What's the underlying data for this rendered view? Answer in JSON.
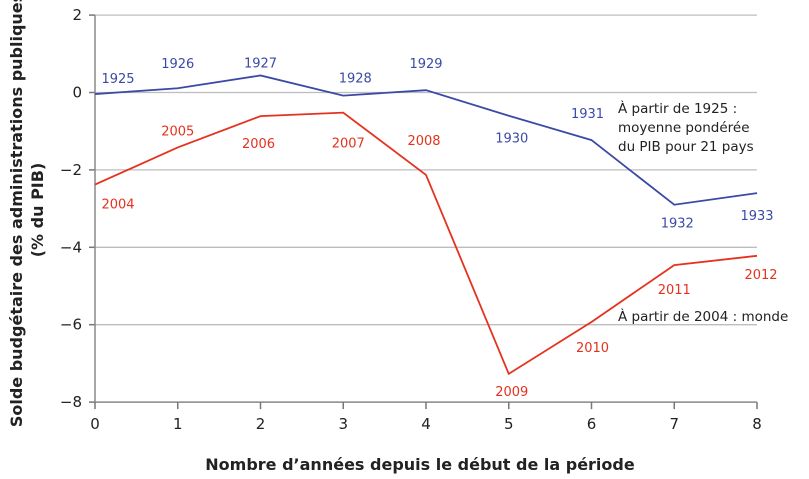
{
  "chart_data": {
    "type": "line",
    "xlabel": "Nombre d’années depuis le début de la période",
    "ylabel": [
      "Solde budgétaire des administrations publiques",
      "(% du PIB)"
    ],
    "xlim": [
      0,
      8
    ],
    "ylim": [
      -8,
      2
    ],
    "xticks": [
      "0",
      "1",
      "2",
      "3",
      "4",
      "5",
      "6",
      "7",
      "8"
    ],
    "yticks": [
      "2",
      "0",
      "−2",
      "−4",
      "−6",
      "−8"
    ],
    "ytick_values": [
      2,
      0,
      -2,
      -4,
      -6,
      -8
    ],
    "grid": "horizontal",
    "x": [
      0,
      1,
      2,
      3,
      4,
      5,
      6,
      7,
      8
    ],
    "series": [
      {
        "name": "À partir de 1925 : moyenne pondérée du PIB pour 21 pays",
        "annotation": [
          "À partir de 1925 :",
          "moyenne pondérée",
          "du PIB pour 21 pays"
        ],
        "color": "#3b4aa6",
        "values": [
          -0.04,
          0.11,
          0.44,
          -0.08,
          0.06,
          -0.6,
          -1.23,
          -2.9,
          -2.6
        ],
        "point_labels": [
          "1925",
          "1926",
          "1927",
          "1928",
          "1929",
          "1930",
          "1931",
          "1932",
          "1933"
        ]
      },
      {
        "name": "À partir de 2004 : monde",
        "annotation": [
          "À partir de 2004 : monde"
        ],
        "color": "#e5321e",
        "values": [
          -2.38,
          -1.42,
          -0.61,
          -0.52,
          -2.13,
          -7.27,
          -5.93,
          -4.46,
          -4.22
        ],
        "point_labels": [
          "2004",
          "2005",
          "2006",
          "2007",
          "2008",
          "2009",
          "2010",
          "2011",
          "2012"
        ]
      }
    ]
  }
}
